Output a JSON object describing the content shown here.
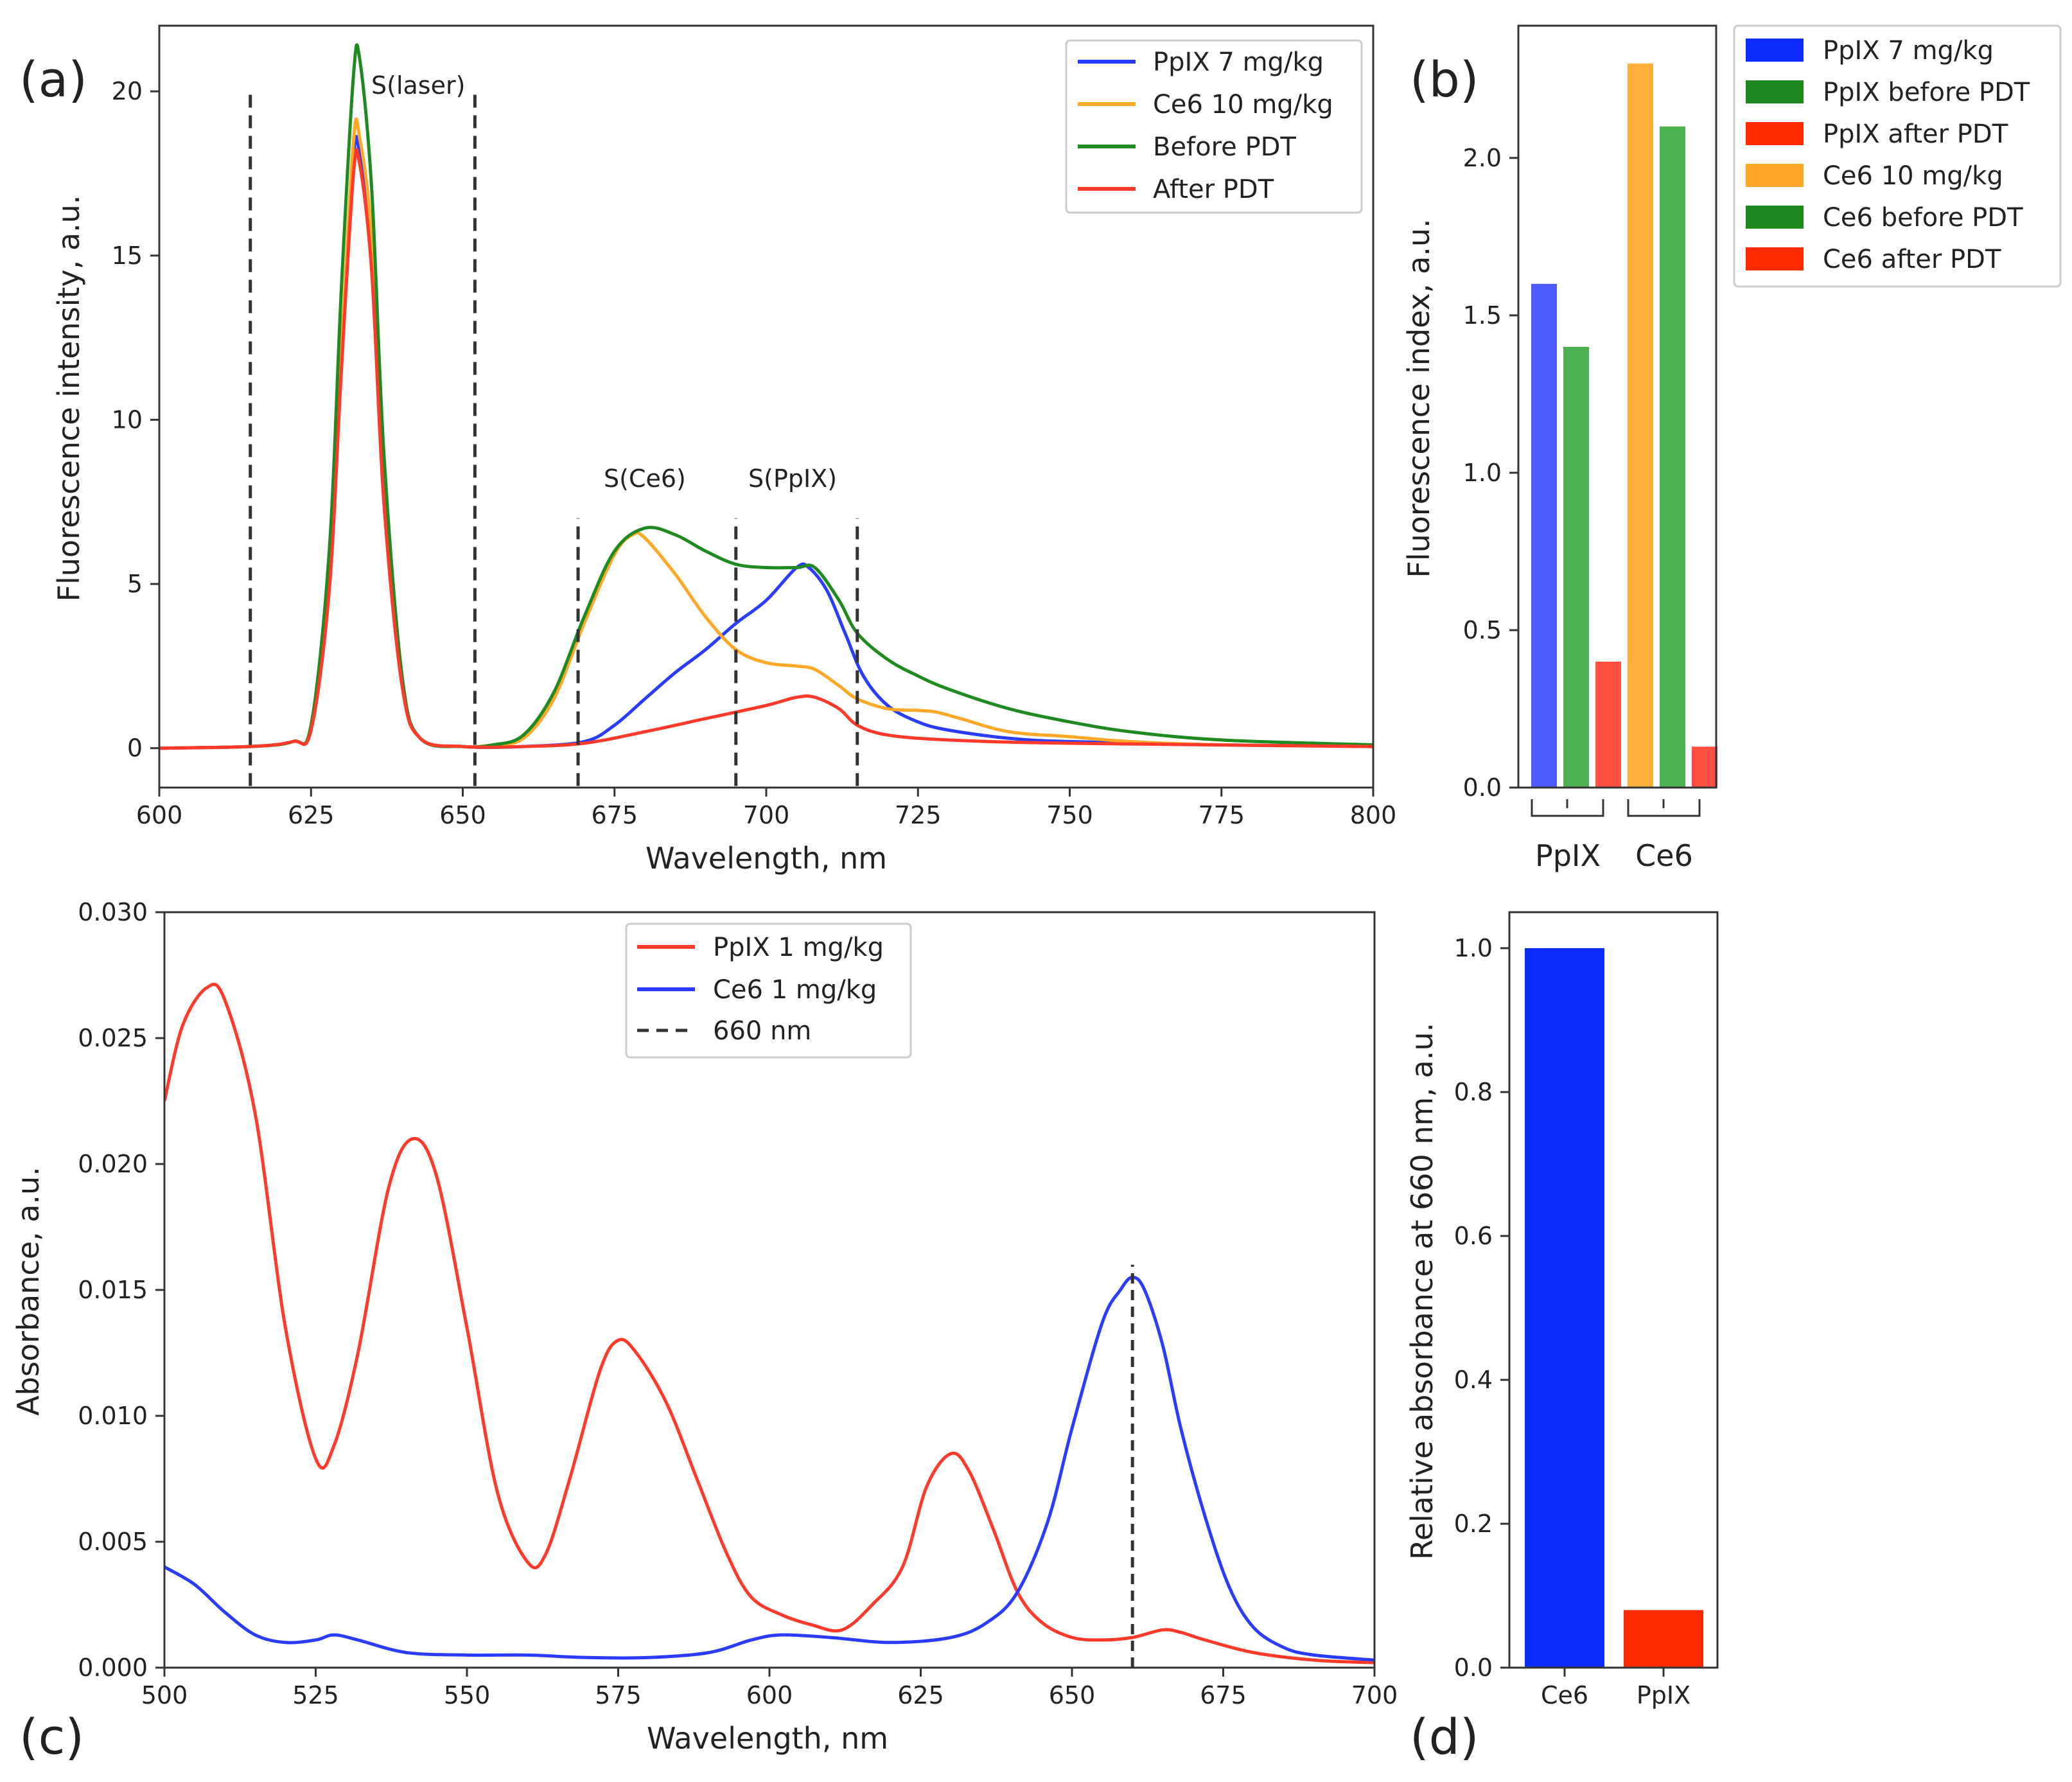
{
  "colors": {
    "blue": "#2a3cff",
    "orange": "#ffa726",
    "green": "#1f8a1f",
    "red": "#ff3a2a",
    "bar_blue": "#4d5cff",
    "bar_green": "#4caf50",
    "bar_red": "#ff4f43",
    "bar_orange": "#ffb03b",
    "bar_red_strong": "#ff2a00",
    "bar_blue_strong": "#0a2cff",
    "dashed": "#333333"
  },
  "chart_data": [
    {
      "id": "a",
      "panel_label": "(a)",
      "type": "line",
      "xlabel": "Wavelength, nm",
      "ylabel": "Fluorescence intensity, a.u.",
      "xlim": [
        600,
        800
      ],
      "ylim": [
        -1.2,
        22
      ],
      "xticks": [
        600,
        625,
        650,
        675,
        700,
        725,
        750,
        775,
        800
      ],
      "yticks": [
        0,
        5,
        10,
        15,
        20
      ],
      "legend_position": "top-right",
      "series": [
        {
          "name": "PpIX 7 mg/kg",
          "color": "#2a3cff",
          "points": [
            [
              600,
              0
            ],
            [
              615,
              0.05
            ],
            [
              622,
              0.2
            ],
            [
              625,
              0.6
            ],
            [
              628,
              5
            ],
            [
              630,
              12
            ],
            [
              632,
              18
            ],
            [
              633,
              18.1
            ],
            [
              635,
              15
            ],
            [
              637,
              8
            ],
            [
              640,
              2
            ],
            [
              643,
              0.3
            ],
            [
              650,
              0.05
            ],
            [
              660,
              0.05
            ],
            [
              670,
              0.2
            ],
            [
              675,
              0.7
            ],
            [
              680,
              1.5
            ],
            [
              685,
              2.3
            ],
            [
              690,
              3
            ],
            [
              695,
              3.8
            ],
            [
              700,
              4.5
            ],
            [
              705,
              5.5
            ],
            [
              707,
              5.5
            ],
            [
              710,
              4.8
            ],
            [
              713,
              3.5
            ],
            [
              716,
              2.2
            ],
            [
              720,
              1.3
            ],
            [
              725,
              0.8
            ],
            [
              730,
              0.55
            ],
            [
              740,
              0.3
            ],
            [
              750,
              0.2
            ],
            [
              775,
              0.1
            ],
            [
              800,
              0.05
            ]
          ]
        },
        {
          "name": "Ce6 10 mg/kg",
          "color": "#ffa726",
          "points": [
            [
              600,
              0
            ],
            [
              615,
              0.05
            ],
            [
              622,
              0.2
            ],
            [
              625,
              0.6
            ],
            [
              628,
              5
            ],
            [
              630,
              12
            ],
            [
              632,
              18.5
            ],
            [
              633,
              18.6
            ],
            [
              635,
              15.5
            ],
            [
              637,
              8
            ],
            [
              640,
              2
            ],
            [
              643,
              0.3
            ],
            [
              650,
              0.05
            ],
            [
              655,
              0.1
            ],
            [
              660,
              0.3
            ],
            [
              665,
              1.5
            ],
            [
              670,
              3.8
            ],
            [
              675,
              5.9
            ],
            [
              678,
              6.5
            ],
            [
              680,
              6.4
            ],
            [
              685,
              5.3
            ],
            [
              690,
              4
            ],
            [
              695,
              3
            ],
            [
              700,
              2.6
            ],
            [
              705,
              2.5
            ],
            [
              708,
              2.4
            ],
            [
              712,
              1.9
            ],
            [
              715,
              1.5
            ],
            [
              720,
              1.2
            ],
            [
              725,
              1.15
            ],
            [
              728,
              1.1
            ],
            [
              732,
              0.9
            ],
            [
              740,
              0.5
            ],
            [
              750,
              0.35
            ],
            [
              760,
              0.2
            ],
            [
              775,
              0.1
            ],
            [
              800,
              0.05
            ]
          ]
        },
        {
          "name": "Before PDT",
          "color": "#1f8a1f",
          "points": [
            [
              600,
              0
            ],
            [
              615,
              0.05
            ],
            [
              622,
              0.2
            ],
            [
              625,
              0.7
            ],
            [
              628,
              6
            ],
            [
              630,
              14
            ],
            [
              632,
              20.5
            ],
            [
              633,
              21
            ],
            [
              635,
              17
            ],
            [
              637,
              9
            ],
            [
              640,
              2.2
            ],
            [
              643,
              0.3
            ],
            [
              650,
              0.05
            ],
            [
              655,
              0.1
            ],
            [
              660,
              0.4
            ],
            [
              665,
              1.7
            ],
            [
              670,
              4
            ],
            [
              675,
              6
            ],
            [
              680,
              6.7
            ],
            [
              685,
              6.5
            ],
            [
              690,
              6
            ],
            [
              695,
              5.6
            ],
            [
              700,
              5.5
            ],
            [
              705,
              5.5
            ],
            [
              708,
              5.5
            ],
            [
              712,
              4.5
            ],
            [
              715,
              3.5
            ],
            [
              720,
              2.7
            ],
            [
              725,
              2.2
            ],
            [
              730,
              1.8
            ],
            [
              740,
              1.2
            ],
            [
              750,
              0.8
            ],
            [
              760,
              0.5
            ],
            [
              775,
              0.25
            ],
            [
              800,
              0.1
            ]
          ]
        },
        {
          "name": "After PDT",
          "color": "#ff3a2a",
          "points": [
            [
              600,
              0
            ],
            [
              615,
              0.05
            ],
            [
              622,
              0.2
            ],
            [
              625,
              0.55
            ],
            [
              628,
              4.8
            ],
            [
              630,
              11.5
            ],
            [
              632,
              17.5
            ],
            [
              633,
              17.8
            ],
            [
              635,
              14.5
            ],
            [
              637,
              7.5
            ],
            [
              640,
              1.9
            ],
            [
              643,
              0.3
            ],
            [
              650,
              0.05
            ],
            [
              660,
              0.05
            ],
            [
              670,
              0.15
            ],
            [
              680,
              0.5
            ],
            [
              690,
              0.9
            ],
            [
              700,
              1.3
            ],
            [
              705,
              1.55
            ],
            [
              708,
              1.55
            ],
            [
              712,
              1.2
            ],
            [
              715,
              0.7
            ],
            [
              720,
              0.4
            ],
            [
              730,
              0.25
            ],
            [
              750,
              0.15
            ],
            [
              800,
              0.05
            ]
          ]
        }
      ],
      "vlines_dashed": [
        615,
        652,
        669,
        695,
        715
      ],
      "vlines_ymax": [
        20,
        20,
        7,
        7,
        7
      ],
      "annotations": [
        {
          "text": "S(laser)",
          "x": 637,
          "y": 20.2
        },
        {
          "text": "S(Ce6)",
          "x": 674,
          "y": 8.1
        },
        {
          "text": "S(PpIX)",
          "x": 697,
          "y": 8.1
        }
      ]
    },
    {
      "id": "b",
      "panel_label": "(b)",
      "type": "bar",
      "ylabel": "Fluorescence index, a.u.",
      "ylim": [
        0,
        2.42
      ],
      "yticks": [
        0.0,
        0.5,
        1.0,
        1.5,
        2.0
      ],
      "legend_position": "outside-right",
      "bars": [
        {
          "name": "PpIX 7 mg/kg",
          "value": 1.6,
          "color": "#4d5cff"
        },
        {
          "name": "PpIX before PDT",
          "value": 1.4,
          "color": "#4caf50"
        },
        {
          "name": "PpIX after PDT",
          "value": 0.4,
          "color": "#ff4f43"
        },
        {
          "name": "Ce6 10 mg/kg",
          "value": 2.3,
          "color": "#ffb03b"
        },
        {
          "name": "Ce6 before PDT",
          "value": 2.1,
          "color": "#4caf50"
        },
        {
          "name": "Ce6 after PDT",
          "value": 0.13,
          "color": "#ff4f43"
        }
      ],
      "legend_colors": [
        "#0a2cff",
        "#1f8a1f",
        "#ff2a00",
        "#ffa726",
        "#1f8a1f",
        "#ff2a00"
      ],
      "groups": [
        {
          "label": "PpIX",
          "bars": [
            0,
            1,
            2
          ]
        },
        {
          "label": "Ce6",
          "bars": [
            3,
            4,
            5
          ]
        }
      ]
    },
    {
      "id": "c",
      "panel_label": "(c)",
      "type": "line",
      "xlabel": "Wavelength, nm",
      "ylabel": "Absorbance, a.u.",
      "xlim": [
        500,
        700
      ],
      "ylim": [
        0,
        0.03
      ],
      "xticks": [
        500,
        525,
        550,
        575,
        600,
        625,
        650,
        675,
        700
      ],
      "yticks": [
        0.0,
        0.005,
        0.01,
        0.015,
        0.02,
        0.025,
        0.03
      ],
      "ytick_labels": [
        "0.000",
        "0.005",
        "0.010",
        "0.015",
        "0.020",
        "0.025",
        "0.030"
      ],
      "legend_position": "upper-center",
      "series": [
        {
          "name": "PpIX 1 mg/kg",
          "color": "#ff3a2a",
          "points": [
            [
              500,
              0.0225
            ],
            [
              503,
              0.0255
            ],
            [
              507,
              0.027
            ],
            [
              510,
              0.0265
            ],
            [
              515,
              0.022
            ],
            [
              520,
              0.0135
            ],
            [
              525,
              0.0083
            ],
            [
              528,
              0.0088
            ],
            [
              532,
              0.0125
            ],
            [
              537,
              0.019
            ],
            [
              541,
              0.021
            ],
            [
              545,
              0.0195
            ],
            [
              550,
              0.0135
            ],
            [
              555,
              0.007
            ],
            [
              560,
              0.0042
            ],
            [
              563,
              0.0045
            ],
            [
              567,
              0.0075
            ],
            [
              572,
              0.0118
            ],
            [
              575,
              0.013
            ],
            [
              578,
              0.0125
            ],
            [
              583,
              0.0105
            ],
            [
              588,
              0.0075
            ],
            [
              593,
              0.0045
            ],
            [
              597,
              0.0028
            ],
            [
              602,
              0.0021
            ],
            [
              607,
              0.0017
            ],
            [
              612,
              0.0015
            ],
            [
              617,
              0.0025
            ],
            [
              622,
              0.004
            ],
            [
              626,
              0.0072
            ],
            [
              630,
              0.0085
            ],
            [
              633,
              0.0078
            ],
            [
              637,
              0.0055
            ],
            [
              641,
              0.003
            ],
            [
              645,
              0.0018
            ],
            [
              650,
              0.0012
            ],
            [
              655,
              0.0011
            ],
            [
              660,
              0.0012
            ],
            [
              665,
              0.0015
            ],
            [
              668,
              0.0014
            ],
            [
              672,
              0.0011
            ],
            [
              680,
              0.0006
            ],
            [
              690,
              0.0003
            ],
            [
              700,
              0.0002
            ]
          ]
        },
        {
          "name": "Ce6 1 mg/kg",
          "color": "#2a3cff",
          "points": [
            [
              500,
              0.004
            ],
            [
              505,
              0.0033
            ],
            [
              510,
              0.0022
            ],
            [
              515,
              0.0013
            ],
            [
              520,
              0.001
            ],
            [
              525,
              0.0011
            ],
            [
              528,
              0.0013
            ],
            [
              532,
              0.0011
            ],
            [
              540,
              0.0006
            ],
            [
              550,
              0.0005
            ],
            [
              560,
              0.0005
            ],
            [
              570,
              0.0004
            ],
            [
              580,
              0.0004
            ],
            [
              590,
              0.0006
            ],
            [
              597,
              0.0011
            ],
            [
              602,
              0.0013
            ],
            [
              610,
              0.0012
            ],
            [
              620,
              0.001
            ],
            [
              630,
              0.0012
            ],
            [
              636,
              0.0018
            ],
            [
              641,
              0.003
            ],
            [
              646,
              0.0058
            ],
            [
              650,
              0.0095
            ],
            [
              655,
              0.0137
            ],
            [
              658,
              0.015
            ],
            [
              660,
              0.0155
            ],
            [
              662,
              0.015
            ],
            [
              665,
              0.0128
            ],
            [
              668,
              0.0095
            ],
            [
              672,
              0.006
            ],
            [
              676,
              0.0032
            ],
            [
              680,
              0.0016
            ],
            [
              685,
              0.0008
            ],
            [
              690,
              0.0005
            ],
            [
              700,
              0.0003
            ]
          ]
        }
      ],
      "legend_extra": "660 nm",
      "vline_dashed": 660,
      "vline_ymax": 0.016
    },
    {
      "id": "d",
      "panel_label": "(d)",
      "type": "bar",
      "ylabel": "Relative absorbance at 660 nm, a.u.",
      "ylim": [
        0,
        1.05
      ],
      "yticks": [
        0.0,
        0.2,
        0.4,
        0.6,
        0.8,
        1.0
      ],
      "categories": [
        "Ce6",
        "PpIX"
      ],
      "values": [
        1.0,
        0.08
      ],
      "colors": [
        "#0a2cff",
        "#ff2a00"
      ]
    }
  ]
}
